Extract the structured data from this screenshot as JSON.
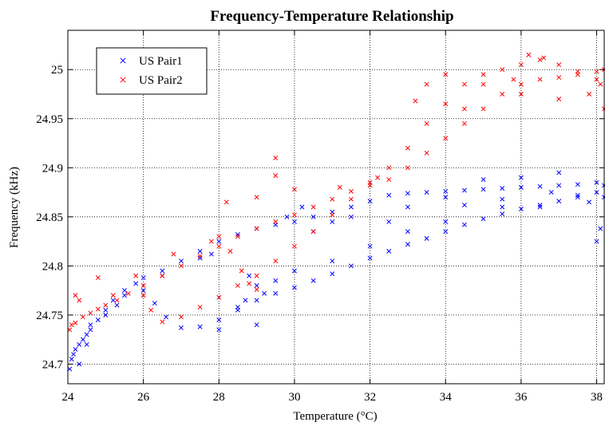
{
  "chart_data": {
    "type": "scatter",
    "title": "Frequency-Temperature Relationship",
    "xlabel": "Temperature (°C)",
    "ylabel": "Frequency (kHz)",
    "xlim": [
      24,
      38.2
    ],
    "ylim": [
      24.68,
      25.04
    ],
    "x_ticks": [
      24,
      26,
      28,
      30,
      32,
      34,
      36,
      38
    ],
    "x_tick_labels": [
      "24",
      "26",
      "28",
      "30",
      "32",
      "34",
      "36",
      "38"
    ],
    "y_ticks": [
      24.7,
      24.75,
      24.8,
      24.85,
      24.9,
      24.95,
      25.0
    ],
    "y_tick_labels": [
      "24.7",
      "24.75",
      "24.8",
      "24.85",
      "24.9",
      "24.95",
      "25"
    ],
    "grid": true,
    "legend_position": "top-left",
    "marker": "x",
    "series": [
      {
        "name": "US Pair1",
        "color": "#0000ff",
        "points": [
          [
            24.05,
            24.695
          ],
          [
            24.1,
            24.705
          ],
          [
            24.15,
            24.71
          ],
          [
            24.2,
            24.715
          ],
          [
            24.3,
            24.72
          ],
          [
            24.4,
            24.725
          ],
          [
            24.5,
            24.73
          ],
          [
            24.6,
            24.735
          ],
          [
            24.8,
            24.745
          ],
          [
            25.0,
            24.755
          ],
          [
            25.2,
            24.765
          ],
          [
            25.5,
            24.775
          ],
          [
            25.8,
            24.782
          ],
          [
            26.0,
            24.788
          ],
          [
            26.5,
            24.795
          ],
          [
            27.0,
            24.805
          ],
          [
            27.5,
            24.815
          ],
          [
            28.0,
            24.825
          ],
          [
            28.5,
            24.832
          ],
          [
            29.0,
            24.838
          ],
          [
            29.5,
            24.842
          ],
          [
            30.0,
            24.845
          ],
          [
            30.5,
            24.85
          ],
          [
            31.0,
            24.855
          ],
          [
            31.5,
            24.86
          ],
          [
            32.0,
            24.866
          ],
          [
            32.5,
            24.872
          ],
          [
            33.0,
            24.874
          ],
          [
            33.5,
            24.875
          ],
          [
            34.0,
            24.876
          ],
          [
            34.5,
            24.877
          ],
          [
            35.0,
            24.878
          ],
          [
            35.5,
            24.879
          ],
          [
            36.0,
            24.88
          ],
          [
            36.5,
            24.881
          ],
          [
            37.0,
            24.882
          ],
          [
            37.5,
            24.883
          ],
          [
            38.0,
            24.885
          ],
          [
            38.2,
            24.882
          ],
          [
            26.0,
            24.775
          ],
          [
            26.3,
            24.762
          ],
          [
            26.6,
            24.748
          ],
          [
            27.0,
            24.737
          ],
          [
            27.5,
            24.738
          ],
          [
            28.0,
            24.745
          ],
          [
            28.5,
            24.755
          ],
          [
            29.0,
            24.765
          ],
          [
            29.5,
            24.772
          ],
          [
            30.0,
            24.778
          ],
          [
            30.5,
            24.785
          ],
          [
            31.0,
            24.792
          ],
          [
            31.5,
            24.8
          ],
          [
            32.0,
            24.808
          ],
          [
            32.5,
            24.815
          ],
          [
            33.0,
            24.822
          ],
          [
            33.5,
            24.828
          ],
          [
            34.0,
            24.835
          ],
          [
            34.5,
            24.842
          ],
          [
            35.0,
            24.848
          ],
          [
            35.5,
            24.853
          ],
          [
            36.0,
            24.858
          ],
          [
            36.5,
            24.862
          ],
          [
            37.0,
            24.866
          ],
          [
            37.5,
            24.87
          ],
          [
            38.0,
            24.875
          ],
          [
            28.8,
            24.79
          ],
          [
            29.0,
            24.78
          ],
          [
            28.7,
            24.765
          ],
          [
            28.5,
            24.758
          ],
          [
            29.2,
            24.772
          ],
          [
            30.5,
            24.835
          ],
          [
            31.0,
            24.845
          ],
          [
            31.5,
            24.85
          ],
          [
            33.0,
            24.86
          ],
          [
            34.5,
            24.862
          ],
          [
            35.5,
            24.868
          ],
          [
            36.5,
            24.86
          ],
          [
            37.5,
            24.872
          ],
          [
            38.1,
            24.838
          ],
          [
            38.0,
            24.825
          ],
          [
            35.0,
            24.888
          ],
          [
            36.0,
            24.89
          ],
          [
            37.0,
            24.895
          ],
          [
            34.0,
            24.845
          ],
          [
            33.0,
            24.835
          ],
          [
            32.0,
            24.82
          ],
          [
            31.0,
            24.805
          ],
          [
            30.0,
            24.795
          ],
          [
            29.5,
            24.785
          ],
          [
            29.0,
            24.74
          ],
          [
            28.0,
            24.735
          ],
          [
            27.8,
            24.812
          ],
          [
            27.5,
            24.808
          ],
          [
            26.5,
            24.79
          ],
          [
            25.5,
            24.77
          ],
          [
            25.0,
            24.75
          ],
          [
            24.5,
            24.72
          ],
          [
            24.3,
            24.7
          ],
          [
            24.6,
            24.74
          ],
          [
            25.3,
            24.76
          ],
          [
            30.2,
            24.86
          ],
          [
            29.8,
            24.85
          ],
          [
            32.5,
            24.845
          ],
          [
            34.0,
            24.87
          ],
          [
            35.5,
            24.86
          ],
          [
            36.8,
            24.875
          ],
          [
            37.8,
            24.865
          ],
          [
            38.2,
            24.87
          ]
        ]
      },
      {
        "name": "US Pair2",
        "color": "#ff0000",
        "points": [
          [
            24.05,
            24.735
          ],
          [
            24.1,
            24.74
          ],
          [
            24.2,
            24.742
          ],
          [
            24.4,
            24.748
          ],
          [
            24.6,
            24.752
          ],
          [
            24.8,
            24.756
          ],
          [
            25.0,
            24.76
          ],
          [
            25.3,
            24.765
          ],
          [
            25.6,
            24.772
          ],
          [
            26.0,
            24.78
          ],
          [
            26.5,
            24.79
          ],
          [
            27.0,
            24.8
          ],
          [
            27.5,
            24.81
          ],
          [
            28.0,
            24.82
          ],
          [
            28.5,
            24.83
          ],
          [
            29.0,
            24.838
          ],
          [
            29.5,
            24.845
          ],
          [
            30.0,
            24.852
          ],
          [
            30.5,
            24.86
          ],
          [
            31.0,
            24.868
          ],
          [
            31.5,
            24.876
          ],
          [
            32.0,
            24.882
          ],
          [
            32.5,
            24.888
          ],
          [
            33.0,
            24.9
          ],
          [
            33.5,
            24.915
          ],
          [
            34.0,
            24.93
          ],
          [
            34.5,
            24.945
          ],
          [
            35.0,
            24.96
          ],
          [
            35.5,
            24.975
          ],
          [
            36.0,
            24.985
          ],
          [
            36.5,
            24.99
          ],
          [
            37.0,
            24.992
          ],
          [
            37.5,
            24.995
          ],
          [
            38.0,
            24.998
          ],
          [
            38.2,
            25.0
          ],
          [
            26.0,
            24.77
          ],
          [
            26.2,
            24.755
          ],
          [
            26.5,
            24.743
          ],
          [
            27.0,
            24.748
          ],
          [
            27.5,
            24.758
          ],
          [
            28.0,
            24.768
          ],
          [
            28.5,
            24.78
          ],
          [
            29.0,
            24.79
          ],
          [
            29.5,
            24.805
          ],
          [
            30.0,
            24.82
          ],
          [
            30.5,
            24.835
          ],
          [
            31.0,
            24.852
          ],
          [
            31.5,
            24.868
          ],
          [
            32.0,
            24.885
          ],
          [
            32.5,
            24.9
          ],
          [
            33.0,
            24.92
          ],
          [
            33.5,
            24.945
          ],
          [
            34.0,
            24.965
          ],
          [
            34.5,
            24.985
          ],
          [
            35.0,
            24.995
          ],
          [
            35.5,
            25.0
          ],
          [
            36.0,
            25.005
          ],
          [
            36.5,
            25.01
          ],
          [
            37.0,
            25.005
          ],
          [
            37.5,
            24.998
          ],
          [
            38.0,
            24.99
          ],
          [
            28.0,
            24.83
          ],
          [
            28.3,
            24.815
          ],
          [
            28.6,
            24.795
          ],
          [
            28.8,
            24.782
          ],
          [
            29.0,
            24.776
          ],
          [
            33.2,
            24.968
          ],
          [
            33.5,
            24.985
          ],
          [
            34.0,
            24.995
          ],
          [
            35.0,
            24.985
          ],
          [
            36.0,
            24.975
          ],
          [
            37.0,
            24.97
          ],
          [
            37.8,
            24.975
          ],
          [
            38.1,
            24.985
          ],
          [
            38.2,
            24.96
          ],
          [
            29.5,
            24.91
          ],
          [
            29.5,
            24.892
          ],
          [
            28.2,
            24.865
          ],
          [
            24.2,
            24.77
          ],
          [
            24.8,
            24.788
          ],
          [
            24.3,
            24.765
          ],
          [
            29.0,
            24.87
          ],
          [
            30.0,
            24.878
          ],
          [
            31.2,
            24.88
          ],
          [
            32.2,
            24.89
          ],
          [
            36.2,
            25.015
          ],
          [
            36.6,
            25.012
          ],
          [
            35.8,
            24.99
          ],
          [
            34.5,
            24.96
          ],
          [
            27.8,
            24.825
          ],
          [
            26.8,
            24.812
          ],
          [
            25.8,
            24.79
          ],
          [
            25.2,
            24.77
          ]
        ]
      }
    ]
  }
}
